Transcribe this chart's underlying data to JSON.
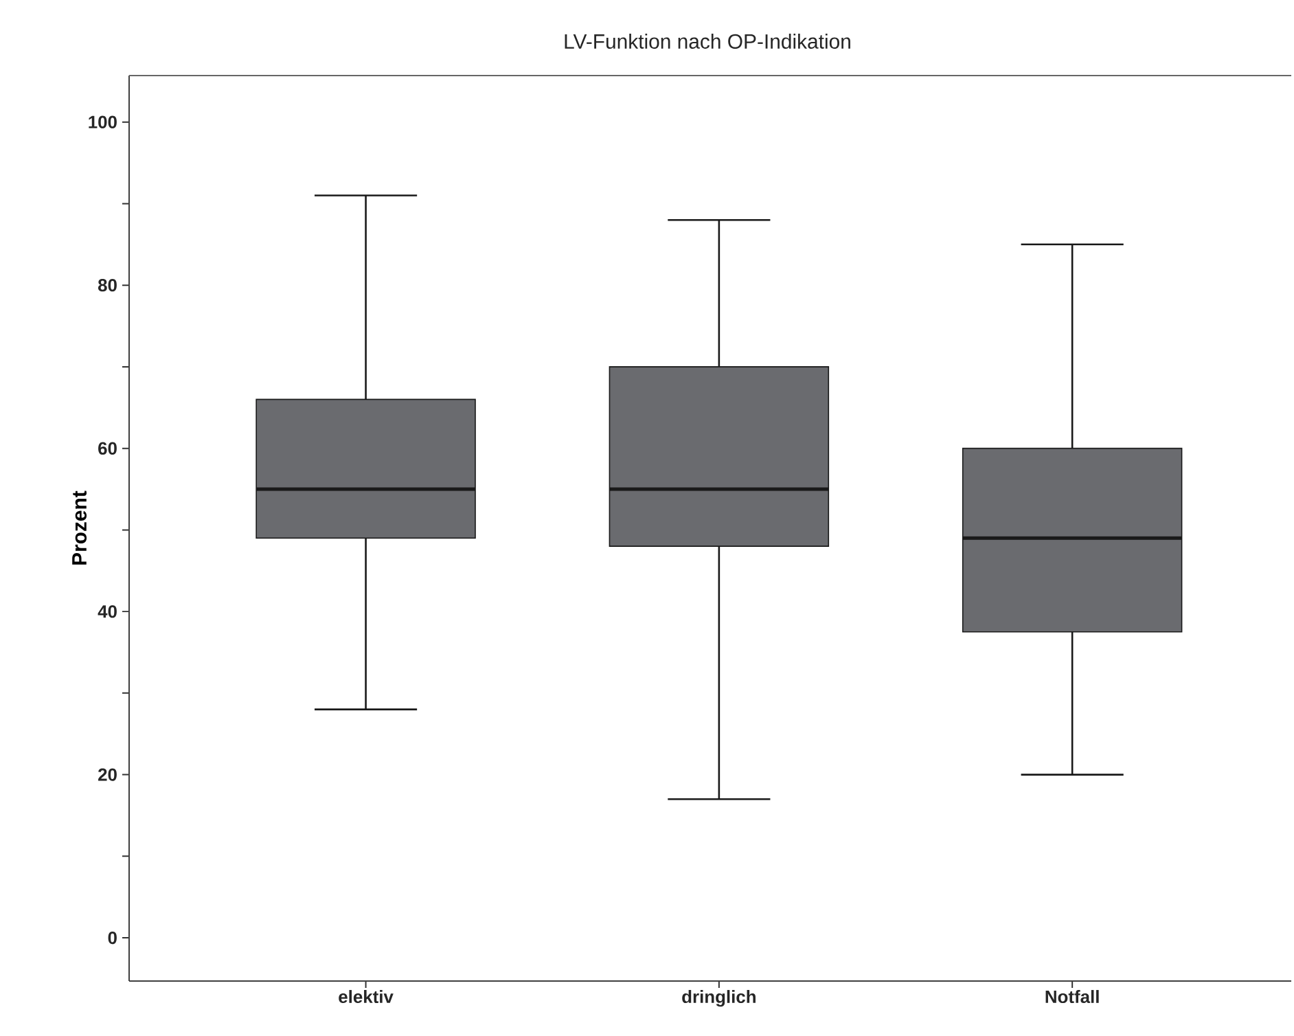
{
  "chart_data": {
    "type": "box",
    "title": "LV-Funktion nach OP-Indikation",
    "ylabel": "Prozent",
    "categories": [
      "elektiv",
      "dringlich",
      "Notfall"
    ],
    "boxes": [
      {
        "low": 28,
        "q1": 49,
        "median": 55,
        "q3": 66,
        "high": 91
      },
      {
        "low": 17,
        "q1": 48,
        "median": 55,
        "q3": 70,
        "high": 88
      },
      {
        "low": 20,
        "q1": 37.5,
        "median": 49,
        "q3": 60,
        "high": 85
      }
    ],
    "color": "#6a6b6f",
    "ylim": [
      -5.3,
      105.7
    ],
    "yticks": [
      0,
      {
        "value": 10,
        "label": null
      },
      20,
      {
        "value": 30,
        "label": null
      },
      40,
      {
        "value": 50,
        "label": null
      },
      60,
      {
        "value": 70,
        "label": null
      },
      80,
      {
        "value": 90,
        "label": null
      },
      100
    ]
  }
}
